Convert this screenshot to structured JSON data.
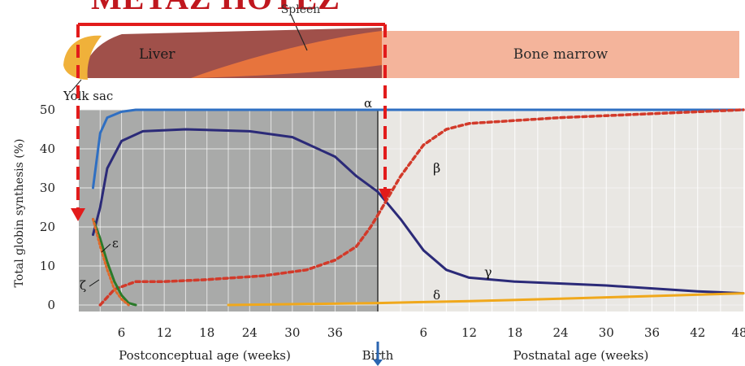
{
  "header": {
    "title": "METAZ HOTEZ"
  },
  "organs": {
    "spleen": "Spleen",
    "liver": "Liver",
    "bone_marrow": "Bone marrow",
    "yolk_sac": "Yolk sac"
  },
  "colors": {
    "prenatal_bg": "#a9aaa9",
    "postnatal_bg": "#e9e7e3",
    "grid": "#f3f3f3",
    "liver": "#a0504a",
    "spleen": "#e7743d",
    "bone_marrow": "#f4b49b",
    "yolk_sac": "#f0b13a",
    "alpha": "#2f6fc2",
    "gamma": "#2b2a78",
    "beta": "#d23a2a",
    "epsilon": "#2a7a2a",
    "zeta": "#e06a2a",
    "delta": "#f0a81c",
    "annotation_red": "#e21b1b",
    "annotation_blue": "#2b65b0"
  },
  "chart_data": {
    "type": "line",
    "ylabel": "Total globin synthesis (%)",
    "xlabel_prenatal": "Postconceptual age (weeks)",
    "xlabel_postnatal": "Postnatal age (weeks)",
    "birth_label": "Birth",
    "ylim": [
      0,
      50
    ],
    "yticks": [
      "0",
      "10",
      "20",
      "30",
      "40",
      "50"
    ],
    "prenatal_xlim": [
      0,
      42
    ],
    "postnatal_xlim": [
      0,
      48
    ],
    "prenatal_xticks": [
      "6",
      "12",
      "18",
      "24",
      "30",
      "36"
    ],
    "postnatal_xticks": [
      "6",
      "12",
      "18",
      "24",
      "30",
      "36",
      "42",
      "48"
    ],
    "series": [
      {
        "name": "α",
        "color_key": "alpha",
        "prenatal": [
          [
            2,
            30
          ],
          [
            3,
            44
          ],
          [
            4,
            48
          ],
          [
            6,
            49.5
          ],
          [
            8,
            50
          ],
          [
            42,
            50
          ]
        ],
        "postnatal": [
          [
            0,
            50
          ],
          [
            48,
            50
          ]
        ]
      },
      {
        "name": "γ",
        "color_key": "gamma",
        "prenatal": [
          [
            2,
            18
          ],
          [
            3,
            25
          ],
          [
            4,
            35
          ],
          [
            6,
            42
          ],
          [
            9,
            44.5
          ],
          [
            15,
            45
          ],
          [
            24,
            44.5
          ],
          [
            30,
            43
          ],
          [
            36,
            38
          ],
          [
            39,
            33
          ],
          [
            42,
            29
          ]
        ],
        "postnatal": [
          [
            0,
            29
          ],
          [
            3,
            22
          ],
          [
            6,
            14
          ],
          [
            9,
            9
          ],
          [
            12,
            7
          ],
          [
            18,
            6
          ],
          [
            30,
            5
          ],
          [
            42,
            3.5
          ],
          [
            48,
            3
          ]
        ]
      },
      {
        "name": "β",
        "color_key": "beta",
        "dashed": true,
        "prenatal": [
          [
            3,
            0
          ],
          [
            5,
            4
          ],
          [
            8,
            6
          ],
          [
            12,
            6
          ],
          [
            18,
            6.5
          ],
          [
            26,
            7.5
          ],
          [
            32,
            9
          ],
          [
            36,
            11.5
          ],
          [
            39,
            15
          ],
          [
            41,
            20
          ],
          [
            42,
            23
          ]
        ],
        "postnatal": [
          [
            0,
            23
          ],
          [
            3,
            33
          ],
          [
            6,
            41
          ],
          [
            9,
            45
          ],
          [
            12,
            46.5
          ],
          [
            24,
            48
          ],
          [
            36,
            49
          ],
          [
            48,
            50
          ]
        ]
      },
      {
        "name": "ε",
        "color_key": "epsilon",
        "prenatal": [
          [
            2,
            22
          ],
          [
            3,
            17
          ],
          [
            4,
            11
          ],
          [
            5,
            6
          ],
          [
            6,
            2.5
          ],
          [
            7,
            0.5
          ],
          [
            8,
            0
          ]
        ]
      },
      {
        "name": "ζ",
        "color_key": "zeta",
        "dotted": true,
        "prenatal": [
          [
            2,
            22
          ],
          [
            3,
            15
          ],
          [
            4,
            9
          ],
          [
            5,
            4
          ],
          [
            6,
            1.5
          ],
          [
            7,
            0
          ]
        ]
      },
      {
        "name": "δ",
        "color_key": "delta",
        "prenatal": [
          [
            21,
            0
          ],
          [
            42,
            0.5
          ]
        ],
        "postnatal": [
          [
            0,
            0.5
          ],
          [
            12,
            1
          ],
          [
            24,
            1.6
          ],
          [
            36,
            2.3
          ],
          [
            48,
            3
          ]
        ]
      }
    ]
  }
}
